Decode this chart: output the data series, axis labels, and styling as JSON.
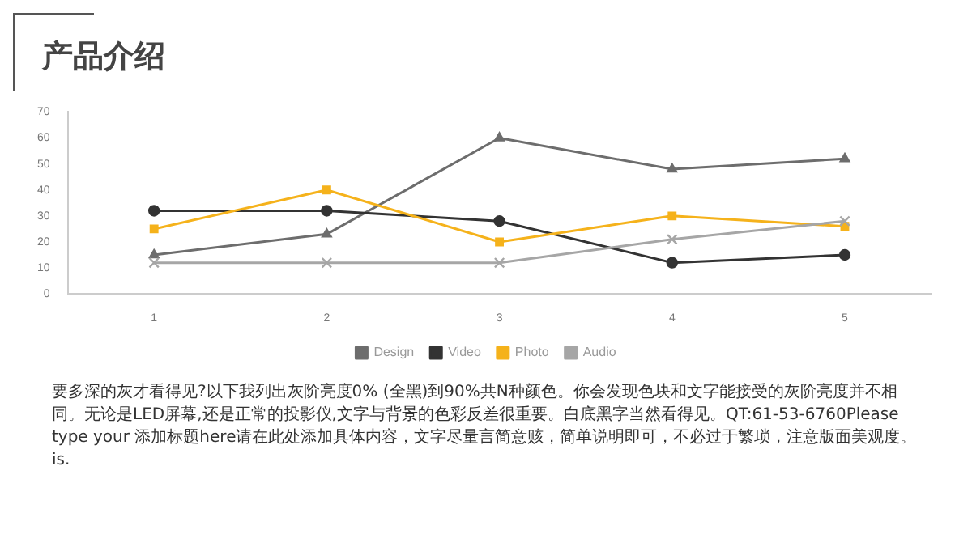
{
  "chart_data": {
    "type": "line",
    "title": "产品介绍",
    "categories": [
      "1",
      "2",
      "3",
      "4",
      "5"
    ],
    "series": [
      {
        "name": "Design",
        "color": "#6d6d6d",
        "marker": "triangle",
        "values": [
          15,
          23,
          60,
          48,
          52
        ]
      },
      {
        "name": "Video",
        "color": "#333333",
        "marker": "circle",
        "values": [
          32,
          32,
          28,
          12,
          15
        ]
      },
      {
        "name": "Photo",
        "color": "#f5b21b",
        "marker": "square",
        "values": [
          25,
          40,
          20,
          30,
          26
        ]
      },
      {
        "name": "Audio",
        "color": "#a6a6a6",
        "marker": "cross",
        "values": [
          12,
          12,
          12,
          21,
          28
        ]
      }
    ],
    "ylim": [
      0,
      70
    ],
    "yticks": [
      0,
      10,
      20,
      30,
      40,
      50,
      60,
      70
    ],
    "grid": false,
    "legend": "bottom",
    "annotations": [
      "要多深的灰才看得见?以下我列出灰阶亮度0% (全黑)到90%共N种颜色。你会发现色块和文字能接受的灰阶亮度并不相同。无论是LED屏幕,还是正常的投影仪,文字与背景的色彩反差很重要。白底黑字当然看得见。QT:61-53-6760Please type your 添加标题here请在此处添加具体内容，文字尽量言简意赅，简单说明即可，不必过于繁琐，注意版面美观度。is."
    ]
  }
}
